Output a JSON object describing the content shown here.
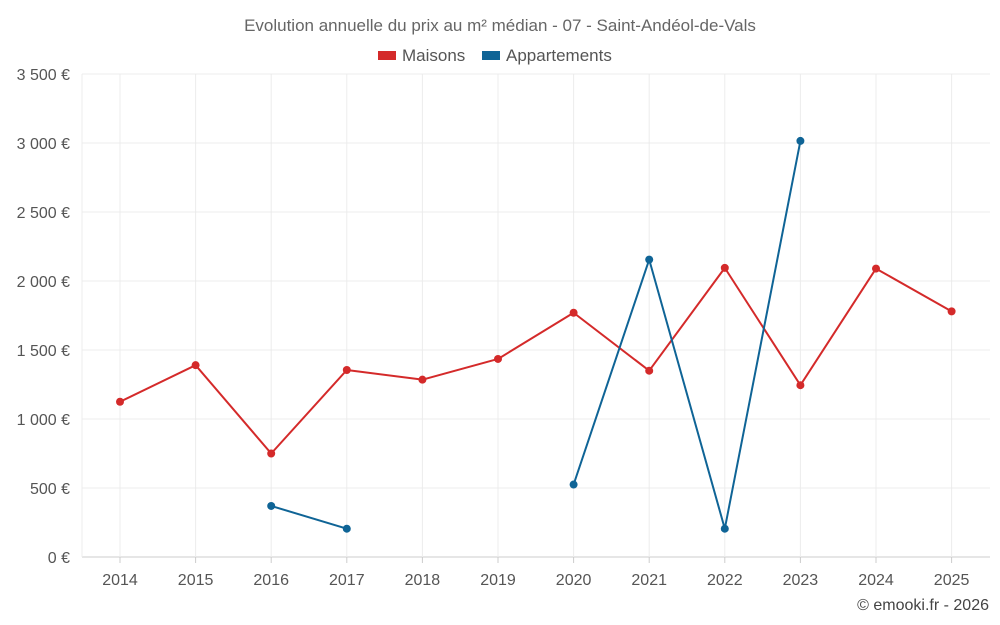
{
  "chart_data": {
    "type": "line",
    "title": "Evolution annuelle du prix au m² médian - 07 - Saint-Andéol-de-Vals",
    "xlabel": "",
    "ylabel": "",
    "categories": [
      "2014",
      "2015",
      "2016",
      "2017",
      "2018",
      "2019",
      "2020",
      "2021",
      "2022",
      "2023",
      "2024",
      "2025"
    ],
    "ylim": [
      0,
      3500
    ],
    "yticks": [
      0,
      500,
      1000,
      1500,
      2000,
      2500,
      3000,
      3500
    ],
    "ytick_labels": [
      "0 €",
      "500 €",
      "1 000 €",
      "1 500 €",
      "2 000 €",
      "2 500 €",
      "3 000 €",
      "3 500 €"
    ],
    "grid": true,
    "legend_position": "top-center",
    "series": [
      {
        "name": "Maisons",
        "color": "#d42a2a",
        "values": [
          1125,
          1390,
          750,
          1355,
          1285,
          1435,
          1770,
          1350,
          2095,
          1245,
          2090,
          1780
        ]
      },
      {
        "name": "Appartements",
        "color": "#0f6496",
        "values": [
          null,
          null,
          370,
          205,
          null,
          null,
          525,
          2155,
          205,
          3015,
          null,
          null
        ]
      }
    ]
  },
  "credit": "© emooki.fr - 2026"
}
